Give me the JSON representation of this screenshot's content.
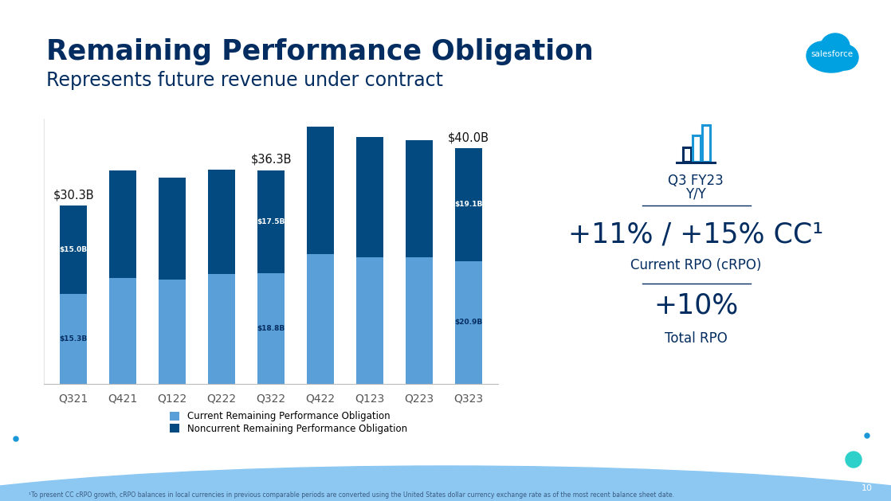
{
  "chart_data": {
    "type": "bar",
    "title": "Remaining Performance Obligation",
    "subtitle": "Represents future revenue under contract",
    "categories": [
      "Q321",
      "Q421",
      "Q122",
      "Q222",
      "Q322",
      "Q422",
      "Q123",
      "Q223",
      "Q323"
    ],
    "series": [
      {
        "name": "Current Remaining Performance Obligation",
        "color": "#5B9FD9",
        "values": [
          15.3,
          18.0,
          17.7,
          18.7,
          18.8,
          22.0,
          21.5,
          21.5,
          20.9
        ],
        "value_labels": [
          "$15.3B",
          null,
          null,
          null,
          "$18.8B",
          null,
          null,
          null,
          "$20.9B"
        ]
      },
      {
        "name": "Noncurrent Remaining Performance Obligation",
        "color": "#034A80",
        "values": [
          15.0,
          18.3,
          17.3,
          17.7,
          17.5,
          21.7,
          20.5,
          19.9,
          19.1
        ],
        "value_labels": [
          "$15.0B",
          null,
          null,
          null,
          "$17.5B",
          null,
          null,
          null,
          "$19.1B"
        ]
      }
    ],
    "total_labels": [
      "$30.3B",
      null,
      null,
      null,
      "$36.3B",
      null,
      null,
      null,
      "$40.0B"
    ],
    "ylim": [
      0,
      45
    ],
    "stacked": true,
    "data_labels": true,
    "tick_labels": "x",
    "legend": "lower left"
  },
  "slide": {
    "logo": "salesforce",
    "page": "10",
    "footnote": "¹To present CC cRPO growth, cRPO balances in local currencies in previous comparable periods are converted using the United States dollar currency exchange rate as of the most recent balance sheet date.",
    "panel": {
      "heading": "Q3 FY23",
      "subheading": "Y/Y",
      "metrics": [
        {
          "value": "+11% / +15% CC¹",
          "label": "Current RPO (cRPO)"
        },
        {
          "value": "+10%",
          "label": "Total RPO"
        }
      ]
    }
  }
}
